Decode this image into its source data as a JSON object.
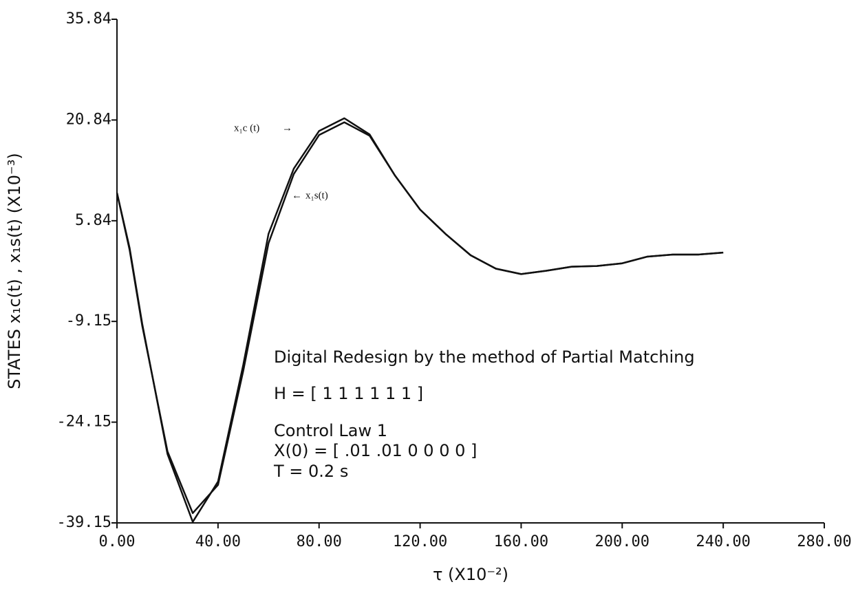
{
  "chart_data": {
    "type": "line",
    "x_label": "τ (X10⁻²)",
    "y_label": "STATES x₁c(t) , x₁s(t) (X10⁻³)",
    "x": [
      0,
      5,
      10,
      20,
      30,
      40,
      50,
      60,
      70,
      80,
      90,
      100,
      110,
      120,
      130,
      140,
      150,
      160,
      170,
      180,
      190,
      200,
      210,
      220,
      230,
      240
    ],
    "series": [
      {
        "name": "x₁c (t)",
        "color": "#111111",
        "values": [
          10.0,
          1.8,
          -9.5,
          -28.9,
          -39.0,
          -33.0,
          -15.6,
          3.9,
          13.6,
          19.2,
          21.1,
          18.7,
          12.6,
          7.5,
          3.9,
          0.7,
          -1.3,
          -2.1,
          -1.6,
          -1.0,
          -0.9,
          -0.5,
          0.5,
          0.8,
          0.8,
          1.1
        ]
      },
      {
        "name": "x₁s(t)",
        "color": "#111111",
        "values": [
          10.0,
          1.5,
          -9.8,
          -28.5,
          -37.7,
          -33.5,
          -16.5,
          2.5,
          12.8,
          18.6,
          20.5,
          18.5,
          12.6,
          7.5,
          3.9,
          0.7,
          -1.3,
          -2.1,
          -1.6,
          -1.0,
          -0.9,
          -0.5,
          0.5,
          0.8,
          0.8,
          1.1
        ]
      }
    ],
    "xlim": [
      0,
      280
    ],
    "xticks": [
      {
        "value": 0,
        "label": "0.00"
      },
      {
        "value": 40,
        "label": "40.00"
      },
      {
        "value": 80,
        "label": "80.00"
      },
      {
        "value": 120,
        "label": "120.00"
      },
      {
        "value": 160,
        "label": "160.00"
      },
      {
        "value": 200,
        "label": "200.00"
      },
      {
        "value": 240,
        "label": "240.00"
      },
      {
        "value": 280,
        "label": "280.00"
      }
    ],
    "ylim": [
      -39.15,
      35.84
    ],
    "yticks": [
      -39.15,
      -24.15,
      -9.15,
      5.84,
      20.84,
      35.84
    ],
    "grid": false,
    "annotations": [
      "Digital Redesign by the method of Partial Matching",
      "H = [ 1 1 1 1 1 1 ]",
      "Control Law 1",
      "X(0) = [ .01  .01  0  0  0  0 ]",
      "T = 0.2 s"
    ]
  }
}
